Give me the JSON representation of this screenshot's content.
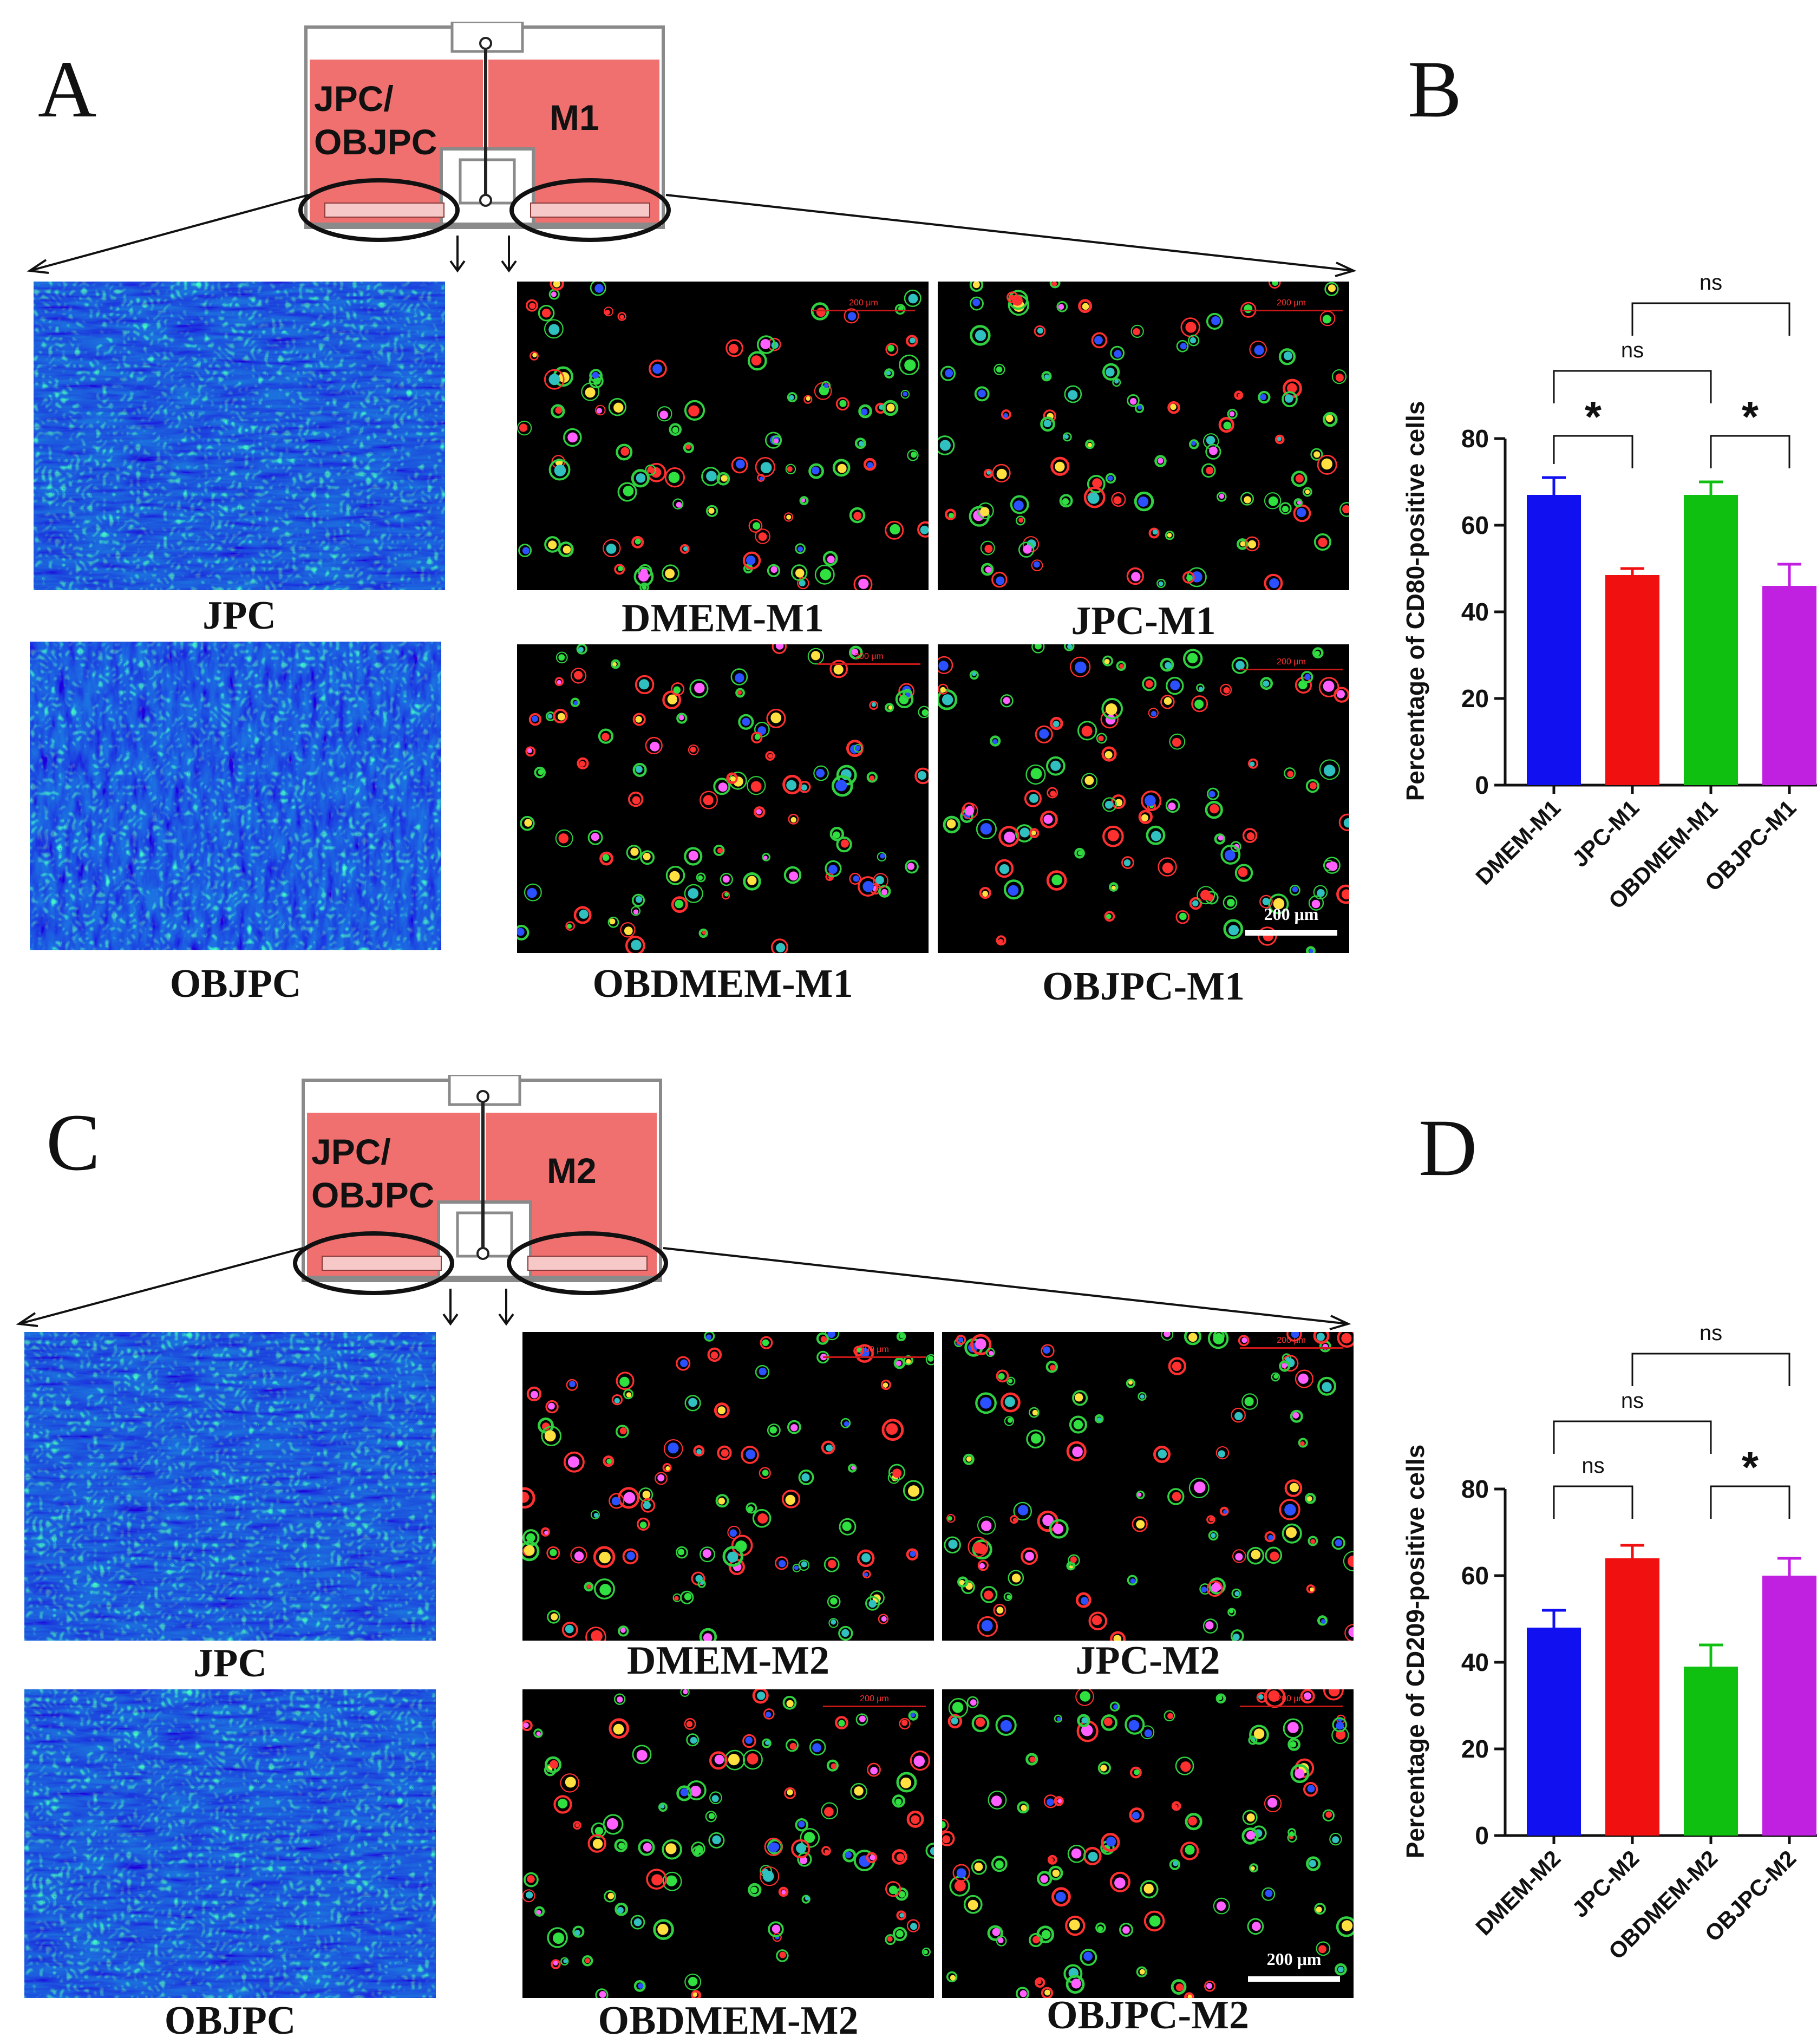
{
  "panels": [
    {
      "id": "A",
      "letter": "A",
      "insert": {
        "left_label_line1": "JPC/",
        "left_label_line2": "OBJPC",
        "right_label": "M1"
      },
      "left_images": [
        {
          "caption": "JPC",
          "style": "fibro"
        },
        {
          "caption": "OBJPC",
          "style": "fibro_aligned"
        }
      ],
      "right_images": [
        {
          "caption": "DMEM-M1",
          "scale_label": "200 μm"
        },
        {
          "caption": "JPC-M1",
          "scale_label": "200 μm"
        },
        {
          "caption": "OBDMEM-M1",
          "scale_label": "200 μm"
        },
        {
          "caption": "OBJPC-M1",
          "scale_label": "200 μm",
          "white_scale_label": "200 μm"
        }
      ]
    },
    {
      "id": "C",
      "letter": "C",
      "insert": {
        "left_label_line1": "JPC/",
        "left_label_line2": "OBJPC",
        "right_label": "M2"
      },
      "left_images": [
        {
          "caption": "JPC",
          "style": "fibro"
        },
        {
          "caption": "OBJPC",
          "style": "fibro"
        }
      ],
      "right_images": [
        {
          "caption": "DMEM-M2",
          "scale_label": "200 μm"
        },
        {
          "caption": "JPC-M2",
          "scale_label": "200 μm"
        },
        {
          "caption": "OBDMEM-M2",
          "scale_label": "200 μm"
        },
        {
          "caption": "OBJPC-M2",
          "scale_label": "200 μm",
          "white_scale_label": "200 μm"
        }
      ]
    }
  ],
  "chart_data": [
    {
      "panel": "B",
      "type": "bar",
      "categories": [
        "DMEM-M1",
        "JPC-M1",
        "OBDMEM-M1",
        "OBJPC-M1"
      ],
      "values": [
        67,
        48.5,
        67,
        46
      ],
      "errors": [
        4,
        1.5,
        3,
        5
      ],
      "colors": [
        "#1010f0",
        "#f01010",
        "#10c010",
        "#c020e0"
      ],
      "ylabel": "Percentage of CD80-positive cells",
      "ylim": [
        0,
        80
      ],
      "yticks": [
        0,
        20,
        40,
        60,
        80
      ],
      "comparisons": [
        {
          "from": "DMEM-M1",
          "to": "JPC-M1",
          "label": "*",
          "level": 1
        },
        {
          "from": "OBDMEM-M1",
          "to": "OBJPC-M1",
          "label": "*",
          "level": 1
        },
        {
          "from": "DMEM-M1",
          "to": "OBDMEM-M1",
          "label": "ns",
          "level": 2
        },
        {
          "from": "JPC-M1",
          "to": "OBJPC-M1",
          "label": "ns",
          "level": 3
        }
      ]
    },
    {
      "panel": "D",
      "type": "bar",
      "categories": [
        "DMEM-M2",
        "JPC-M2",
        "OBDMEM-M2",
        "OBJPC-M2"
      ],
      "values": [
        48,
        64,
        39,
        60
      ],
      "errors": [
        4,
        3,
        5,
        4
      ],
      "colors": [
        "#1010f0",
        "#f01010",
        "#10c010",
        "#c020e0"
      ],
      "ylabel": "Percentage of CD209-positive cells",
      "ylim": [
        0,
        80
      ],
      "yticks": [
        0,
        20,
        40,
        60,
        80
      ],
      "comparisons": [
        {
          "from": "DMEM-M2",
          "to": "JPC-M2",
          "label": "ns",
          "level": 1
        },
        {
          "from": "OBDMEM-M2",
          "to": "OBJPC-M2",
          "label": "*",
          "level": 1
        },
        {
          "from": "DMEM-M2",
          "to": "OBDMEM-M2",
          "label": "ns",
          "level": 2
        },
        {
          "from": "JPC-M2",
          "to": "OBJPC-M2",
          "label": "ns",
          "level": 3
        }
      ]
    }
  ]
}
